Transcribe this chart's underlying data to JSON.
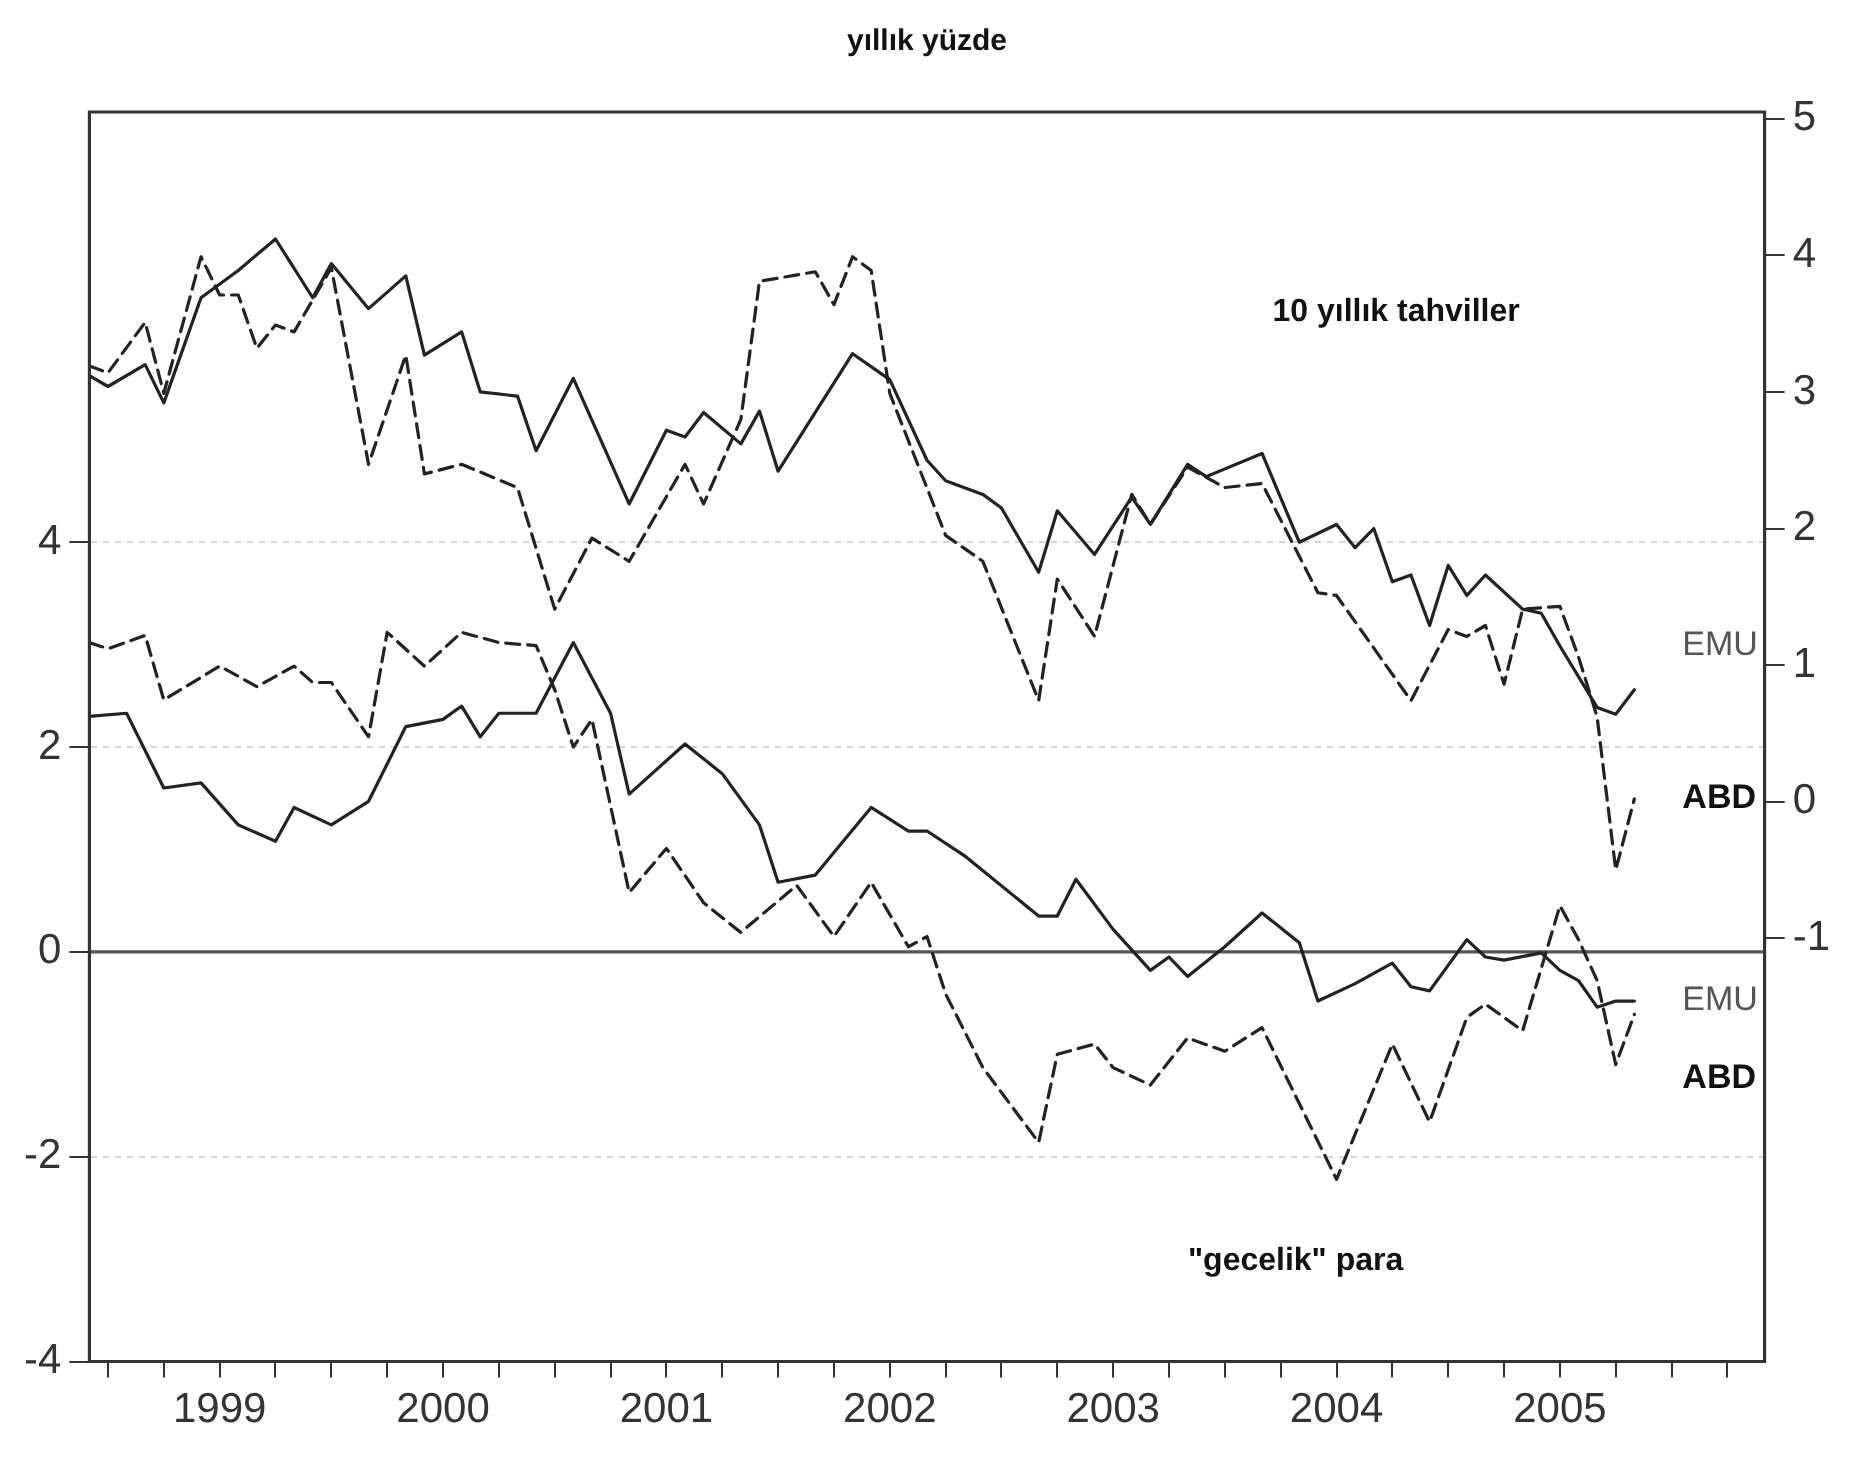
{
  "chart_data": {
    "type": "line",
    "title": "yıllık yüzde",
    "annotations": [
      "10 yıllık tahviller",
      "\"gecelik\" para"
    ],
    "xlim": [
      "1998-12",
      "2006-06"
    ],
    "xticks": [
      {
        "value": "1999-01",
        "label": null
      },
      {
        "value": "1999-04",
        "label": null
      },
      {
        "value": "1999-07",
        "label": "1999"
      },
      {
        "value": "1999-10",
        "label": null
      },
      {
        "value": "2000-01",
        "label": null
      },
      {
        "value": "2000-04",
        "label": null
      },
      {
        "value": "2000-07",
        "label": "2000"
      },
      {
        "value": "2000-10",
        "label": null
      },
      {
        "value": "2001-01",
        "label": null
      },
      {
        "value": "2001-04",
        "label": null
      },
      {
        "value": "2001-07",
        "label": "2001"
      },
      {
        "value": "2001-10",
        "label": null
      },
      {
        "value": "2002-01",
        "label": null
      },
      {
        "value": "2002-04",
        "label": null
      },
      {
        "value": "2002-07",
        "label": "2002"
      },
      {
        "value": "2002-10",
        "label": null
      },
      {
        "value": "2003-01",
        "label": null
      },
      {
        "value": "2003-04",
        "label": null
      },
      {
        "value": "2003-07",
        "label": "2003"
      },
      {
        "value": "2003-10",
        "label": null
      },
      {
        "value": "2004-01",
        "label": null
      },
      {
        "value": "2004-04",
        "label": null
      },
      {
        "value": "2004-07",
        "label": "2004"
      },
      {
        "value": "2004-10",
        "label": null
      },
      {
        "value": "2005-01",
        "label": null
      },
      {
        "value": "2005-04",
        "label": null
      },
      {
        "value": "2005-07",
        "label": "2005"
      },
      {
        "value": "2005-10",
        "label": null
      },
      {
        "value": "2006-01",
        "label": null
      },
      {
        "value": "2006-04",
        "label": null
      }
    ],
    "ylim": [
      -4,
      8.2
    ],
    "yticks": [
      -4,
      -2,
      0,
      2,
      4
    ],
    "y2lim": [
      -4.1,
      5.05
    ],
    "y2ticks": [
      -1,
      0,
      1,
      2,
      3,
      4,
      5
    ],
    "grid": "y",
    "legend": false,
    "marker": "none",
    "ref_lines": [
      {
        "axis": "y",
        "value": 0,
        "color": "#555555"
      }
    ],
    "series": [
      {
        "name": "EMU",
        "color": "#222222",
        "axis": "y2",
        "line_style": "solid",
        "x": [
          "1998-12",
          "1999-01",
          "1999-03",
          "1999-04",
          "1999-06",
          "1999-08",
          "1999-10",
          "1999-12",
          "2000-01",
          "2000-03",
          "2000-05",
          "2000-06",
          "2000-08",
          "2000-09",
          "2000-11",
          "2000-12",
          "2001-02",
          "2001-05",
          "2001-07",
          "2001-08",
          "2001-09",
          "2001-11",
          "2001-12",
          "2002-01",
          "2002-05",
          "2002-07",
          "2002-09",
          "2002-10",
          "2002-12",
          "2003-01",
          "2003-03",
          "2003-04",
          "2003-06",
          "2003-08",
          "2003-09",
          "2003-11",
          "2003-12",
          "2004-03",
          "2004-05",
          "2004-07",
          "2004-08",
          "2004-09",
          "2004-10",
          "2004-11",
          "2004-12",
          "2005-01",
          "2005-02",
          "2005-03",
          "2005-05",
          "2005-06",
          "2005-07",
          "2005-09",
          "2005-10",
          "2005-11"
        ],
        "values": [
          3.12,
          3.04,
          3.2,
          2.92,
          3.69,
          3.89,
          4.12,
          3.69,
          3.94,
          3.61,
          3.85,
          3.27,
          3.44,
          3.0,
          2.97,
          2.57,
          3.1,
          2.18,
          2.72,
          2.67,
          2.85,
          2.62,
          2.86,
          2.42,
          3.28,
          3.09,
          2.5,
          2.35,
          2.25,
          2.15,
          1.68,
          2.13,
          1.81,
          2.23,
          2.03,
          2.47,
          2.38,
          2.55,
          1.9,
          2.03,
          1.86,
          2.0,
          1.61,
          1.66,
          1.29,
          1.73,
          1.51,
          1.66,
          1.41,
          1.38,
          1.14,
          0.69,
          0.64,
          0.82
        ]
      },
      {
        "name": "ABD",
        "color": "#222222",
        "axis": "y2",
        "line_style": "dashed",
        "x": [
          "1998-12",
          "1999-01",
          "1999-03",
          "1999-04",
          "1999-06",
          "1999-07",
          "1999-08",
          "1999-09",
          "1999-10",
          "1999-11",
          "2000-01",
          "2000-03",
          "2000-05",
          "2000-06",
          "2000-08",
          "2000-11",
          "2001-01",
          "2001-03",
          "2001-05",
          "2001-08",
          "2001-09",
          "2001-11",
          "2001-12",
          "2002-03",
          "2002-04",
          "2002-05",
          "2002-06",
          "2002-07",
          "2002-10",
          "2002-12",
          "2003-03",
          "2003-04",
          "2003-06",
          "2003-08",
          "2003-09",
          "2003-11",
          "2004-01",
          "2004-03",
          "2004-06",
          "2004-07",
          "2004-11",
          "2005-01",
          "2005-02",
          "2005-03",
          "2005-04",
          "2005-05",
          "2005-07",
          "2005-08",
          "2005-09",
          "2005-10",
          "2005-11"
        ],
        "values": [
          3.19,
          3.14,
          3.51,
          2.99,
          3.99,
          3.71,
          3.71,
          3.32,
          3.49,
          3.44,
          3.91,
          2.47,
          3.27,
          2.4,
          2.47,
          2.3,
          1.41,
          1.93,
          1.76,
          2.47,
          2.18,
          2.8,
          3.81,
          3.88,
          3.64,
          3.99,
          3.89,
          2.99,
          1.95,
          1.76,
          0.74,
          1.63,
          1.21,
          2.25,
          2.03,
          2.45,
          2.3,
          2.33,
          1.53,
          1.51,
          0.74,
          1.26,
          1.21,
          1.29,
          0.86,
          1.41,
          1.43,
          1.06,
          0.62,
          -0.5,
          0.02
        ]
      },
      {
        "name": "EMU",
        "color": "#222222",
        "line_style": "solid",
        "x": [
          "1998-12",
          "1999-02",
          "1999-04",
          "1999-06",
          "1999-08",
          "1999-10",
          "1999-11",
          "2000-01",
          "2000-03",
          "2000-05",
          "2000-07",
          "2000-08",
          "2000-09",
          "2000-10",
          "2000-12",
          "2001-02",
          "2001-04",
          "2001-05",
          "2001-08",
          "2001-10",
          "2001-12",
          "2002-01",
          "2002-03",
          "2002-06",
          "2002-08",
          "2002-09",
          "2002-11",
          "2003-03",
          "2003-04",
          "2003-05",
          "2003-07",
          "2003-09",
          "2003-10",
          "2003-11",
          "2004-01",
          "2004-03",
          "2004-05",
          "2004-06",
          "2004-08",
          "2004-10",
          "2004-11",
          "2004-12",
          "2005-02",
          "2005-03",
          "2005-04",
          "2005-06",
          "2005-07",
          "2005-08",
          "2005-09",
          "2005-10",
          "2005-11"
        ],
        "values": [
          2.3,
          2.33,
          1.6,
          1.65,
          1.24,
          1.08,
          1.41,
          1.24,
          1.47,
          2.2,
          2.27,
          2.4,
          2.1,
          2.33,
          2.33,
          3.02,
          2.33,
          1.54,
          2.03,
          1.74,
          1.24,
          0.68,
          0.75,
          1.41,
          1.18,
          1.18,
          0.94,
          0.35,
          0.35,
          0.71,
          0.22,
          -0.18,
          -0.05,
          -0.24,
          0.05,
          0.38,
          0.09,
          -0.48,
          -0.31,
          -0.11,
          -0.34,
          -0.38,
          0.12,
          -0.05,
          -0.08,
          -0.01,
          -0.18,
          -0.28,
          -0.54,
          -0.48,
          -0.48
        ]
      },
      {
        "name": "ABD",
        "color": "#222222",
        "line_style": "dashed",
        "x": [
          "1998-12",
          "1999-01",
          "1999-03",
          "1999-04",
          "1999-07",
          "1999-09",
          "1999-11",
          "1999-12",
          "2000-01",
          "2000-03",
          "2000-04",
          "2000-06",
          "2000-08",
          "2000-10",
          "2000-12",
          "2001-01",
          "2001-02",
          "2001-03",
          "2001-05",
          "2001-07",
          "2001-09",
          "2001-11",
          "2002-02",
          "2002-04",
          "2002-06",
          "2002-08",
          "2002-09",
          "2002-10",
          "2002-12",
          "2003-03",
          "2003-04",
          "2003-06",
          "2003-07",
          "2003-09",
          "2003-11",
          "2004-01",
          "2004-03",
          "2004-07",
          "2004-10",
          "2004-12",
          "2005-02",
          "2005-03",
          "2005-05",
          "2005-07",
          "2005-08",
          "2005-09",
          "2005-10",
          "2005-11"
        ],
        "values": [
          3.02,
          2.96,
          3.09,
          2.46,
          2.79,
          2.59,
          2.79,
          2.63,
          2.63,
          2.1,
          3.12,
          2.79,
          3.12,
          3.02,
          2.99,
          2.56,
          2.0,
          2.27,
          0.58,
          1.01,
          0.48,
          0.19,
          0.65,
          0.15,
          0.68,
          0.05,
          0.15,
          -0.41,
          -1.13,
          -1.86,
          -1.0,
          -0.9,
          -1.13,
          -1.3,
          -0.84,
          -0.97,
          -0.74,
          -2.22,
          -0.9,
          -1.66,
          -0.64,
          -0.51,
          -0.77,
          0.45,
          0.12,
          -0.28,
          -1.1,
          -0.61
        ]
      }
    ]
  }
}
